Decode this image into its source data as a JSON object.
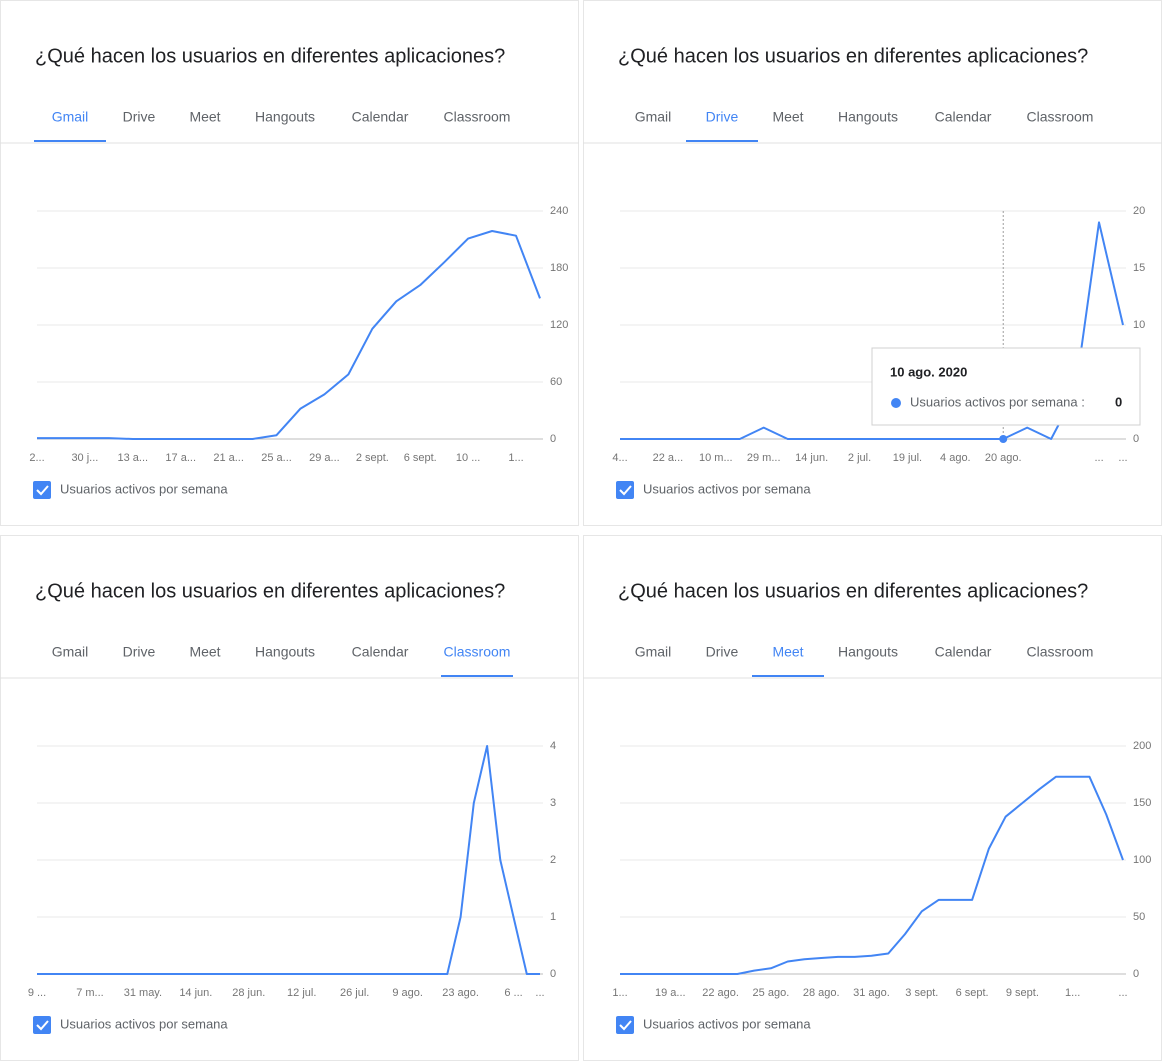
{
  "chart_data": [
    {
      "type": "line",
      "title": "¿Qué hacen los usuarios en diferentes aplicaciones?",
      "tabs": [
        "Gmail",
        "Drive",
        "Meet",
        "Hangouts",
        "Calendar",
        "Classroom"
      ],
      "selected_tab": 0,
      "categories": [
        "2...",
        null,
        "30 j...",
        null,
        "13 a...",
        null,
        "17 a...",
        null,
        "21 a...",
        null,
        "25 a...",
        null,
        "29 a...",
        null,
        "2 sept.",
        null,
        "6 sept.",
        null,
        "10 ...",
        null,
        "1...",
        null
      ],
      "series": [
        {
          "name": "Usuarios activos por semana",
          "color": "#4285f4",
          "values": [
            1,
            1,
            1,
            1,
            0,
            0,
            0,
            0,
            0,
            0,
            4,
            32,
            47,
            68,
            116,
            145,
            162,
            186,
            211,
            219,
            214,
            148
          ]
        }
      ],
      "ylim": [
        0,
        240
      ],
      "yticks": [
        0,
        60,
        120,
        180,
        240
      ],
      "grid": true,
      "legend": "bottom"
    },
    {
      "type": "line",
      "title": "¿Qué hacen los usuarios en diferentes aplicaciones?",
      "tabs": [
        "Gmail",
        "Drive",
        "Meet",
        "Hangouts",
        "Calendar",
        "Classroom"
      ],
      "selected_tab": 1,
      "categories": [
        "4...",
        null,
        "22 a...",
        null,
        "10 m...",
        null,
        "29 m...",
        null,
        "14 jun.",
        null,
        "2 jul.",
        null,
        "19 jul.",
        null,
        "4 ago.",
        null,
        "20 ago.",
        null,
        null,
        null,
        "...",
        "..."
      ],
      "series": [
        {
          "name": "Usuarios activos por semana",
          "color": "#4285f4",
          "values": [
            0,
            0,
            0,
            0,
            0,
            0,
            1,
            0,
            0,
            0,
            0,
            0,
            0,
            0,
            0,
            0,
            0,
            1,
            0,
            4,
            19,
            10
          ]
        }
      ],
      "ylim": [
        0,
        20
      ],
      "yticks": [
        0,
        5,
        10,
        15,
        20
      ],
      "grid": true,
      "legend": "bottom",
      "tooltip": {
        "title": "10 ago. 2020",
        "label": "Usuarios activos por semana :",
        "value": 0
      }
    },
    {
      "type": "line",
      "title": "¿Qué hacen los usuarios en diferentes aplicaciones?",
      "tabs": [
        "Gmail",
        "Drive",
        "Meet",
        "Hangouts",
        "Calendar",
        "Classroom"
      ],
      "selected_tab": 5,
      "categories": [
        "9 ...",
        null,
        null,
        null,
        "7 m...",
        null,
        null,
        null,
        "31 may.",
        null,
        null,
        null,
        "14 jun.",
        null,
        null,
        null,
        "28 jun.",
        null,
        null,
        null,
        "12 jul.",
        null,
        null,
        null,
        "26 jul.",
        null,
        null,
        null,
        "9 ago.",
        null,
        null,
        null,
        "23 ago.",
        null,
        null,
        null,
        "6 ...",
        null,
        "..."
      ],
      "series": [
        {
          "name": "Usuarios activos por semana",
          "color": "#4285f4",
          "values": [
            0,
            0,
            0,
            0,
            0,
            0,
            0,
            0,
            0,
            0,
            0,
            0,
            0,
            0,
            0,
            0,
            0,
            0,
            0,
            0,
            0,
            0,
            0,
            0,
            0,
            0,
            0,
            0,
            0,
            0,
            0,
            0,
            1,
            3,
            4,
            2,
            1,
            0,
            0
          ]
        }
      ],
      "ylim": [
        0,
        4
      ],
      "yticks": [
        0,
        1,
        2,
        3,
        4
      ],
      "grid": true,
      "legend": "bottom"
    },
    {
      "type": "line",
      "title": "¿Qué hacen los usuarios en diferentes aplicaciones?",
      "tabs": [
        "Gmail",
        "Drive",
        "Meet",
        "Hangouts",
        "Calendar",
        "Classroom"
      ],
      "selected_tab": 2,
      "categories": [
        "1...",
        null,
        null,
        "19 a...",
        null,
        null,
        "22 ago.",
        null,
        null,
        "25 ago.",
        null,
        null,
        "28 ago.",
        null,
        null,
        "31 ago.",
        null,
        null,
        "3 sept.",
        null,
        null,
        "6 sept.",
        null,
        null,
        "9 sept.",
        null,
        null,
        "1...",
        null,
        null,
        "..."
      ],
      "series": [
        {
          "name": "Usuarios activos por semana",
          "color": "#4285f4",
          "values": [
            0,
            0,
            0,
            0,
            0,
            0,
            0,
            0,
            3,
            5,
            11,
            13,
            14,
            15,
            15,
            16,
            18,
            35,
            55,
            65,
            65,
            65,
            110,
            138,
            150,
            162,
            173,
            173,
            173,
            140,
            100
          ]
        }
      ],
      "ylim": [
        0,
        200
      ],
      "yticks": [
        0,
        50,
        100,
        150,
        200
      ],
      "grid": true,
      "legend": "bottom"
    }
  ]
}
